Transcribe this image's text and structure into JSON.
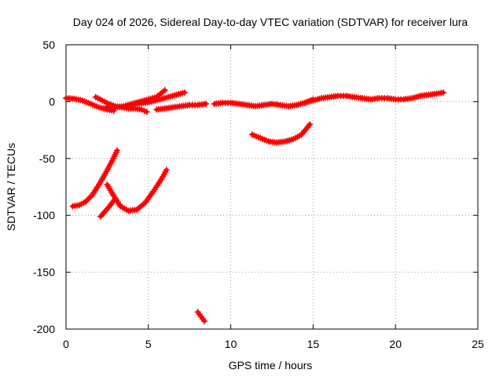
{
  "chart_data": {
    "type": "scatter",
    "title": "Day 024 of 2026, Sidereal Day-to-day VTEC variation (SDTVAR) for receiver lura",
    "xlabel": "GPS time / hours",
    "ylabel": "SDTVAR / TECUs",
    "xlim": [
      0,
      25
    ],
    "ylim": [
      -200,
      50
    ],
    "xticks": [
      0,
      5,
      10,
      15,
      20,
      25
    ],
    "yticks": [
      -200,
      -150,
      -100,
      -50,
      0,
      50
    ],
    "grid": true,
    "marker": "+",
    "color": "#ff0000",
    "series": [
      {
        "name": "arc-1",
        "x": [
          0.0,
          0.5,
          1.0,
          1.5,
          2.0,
          2.5,
          2.9
        ],
        "y": [
          3,
          2.5,
          1,
          -2,
          -5,
          -7,
          -8
        ]
      },
      {
        "name": "arc-2",
        "x": [
          1.8,
          2.2,
          2.6,
          3.0,
          3.4,
          3.8,
          4.2,
          4.6,
          4.9
        ],
        "y": [
          4,
          1,
          -2,
          -4,
          -5,
          -6,
          -6,
          -7,
          -9
        ]
      },
      {
        "name": "arc-3",
        "x": [
          2.5,
          3.0,
          3.5,
          4.0,
          4.5,
          5.0,
          5.5,
          6.0
        ],
        "y": [
          -4,
          -5,
          -4,
          -2,
          0,
          2,
          4,
          10
        ]
      },
      {
        "name": "arc-4",
        "x": [
          4.2,
          4.7,
          5.2,
          5.7,
          6.2,
          6.7,
          7.2
        ],
        "y": [
          -2,
          -1,
          0,
          2,
          4,
          6,
          8
        ]
      },
      {
        "name": "arc-5",
        "x": [
          5.5,
          6.0,
          6.5,
          7.0,
          7.5,
          8.0,
          8.5
        ],
        "y": [
          -7,
          -6,
          -5,
          -4,
          -3,
          -3,
          -2
        ]
      },
      {
        "name": "arc-6",
        "x": [
          9.0,
          9.5,
          10.0,
          10.5,
          11.0,
          11.5,
          12.0,
          12.5,
          13.0,
          13.5,
          14.0,
          14.5,
          15.0
        ],
        "y": [
          -2,
          -1,
          -1,
          -2,
          -3,
          -4,
          -3,
          -2,
          -3,
          -4,
          -3,
          -1,
          2
        ]
      },
      {
        "name": "arc-7",
        "x": [
          14.5,
          15.0,
          15.5,
          16.0,
          16.5,
          17.0,
          17.5,
          18.0,
          18.5,
          19.0,
          19.5,
          20.0,
          20.5,
          21.0,
          21.5,
          22.0,
          22.5,
          22.9
        ],
        "y": [
          -1,
          1,
          3,
          4,
          5,
          5,
          4,
          3,
          2,
          3,
          3,
          2,
          2,
          3,
          5,
          6,
          7,
          8
        ]
      },
      {
        "name": "arc-8",
        "x": [
          11.3,
          11.8,
          12.3,
          12.8,
          13.3,
          13.8,
          14.3,
          14.8
        ],
        "y": [
          -29,
          -32,
          -35,
          -36,
          -35,
          -33,
          -29,
          -20
        ]
      },
      {
        "name": "arc-9",
        "x": [
          0.4,
          0.8,
          1.2,
          1.6,
          2.0,
          2.4,
          2.8,
          3.1
        ],
        "y": [
          -92,
          -91,
          -88,
          -82,
          -73,
          -63,
          -52,
          -43
        ]
      },
      {
        "name": "arc-10",
        "x": [
          2.5,
          2.9,
          3.3,
          3.8,
          4.3,
          4.8,
          5.3,
          5.8,
          6.1
        ],
        "y": [
          -73,
          -83,
          -92,
          -96,
          -95,
          -89,
          -79,
          -68,
          -60
        ]
      },
      {
        "name": "arc-11",
        "x": [
          2.1,
          2.4,
          2.7,
          3.0
        ],
        "y": [
          -101,
          -96,
          -91,
          -85
        ]
      },
      {
        "name": "arc-12",
        "x": [
          8.0,
          8.2,
          8.4
        ],
        "y": [
          -185,
          -189,
          -193
        ]
      }
    ]
  }
}
